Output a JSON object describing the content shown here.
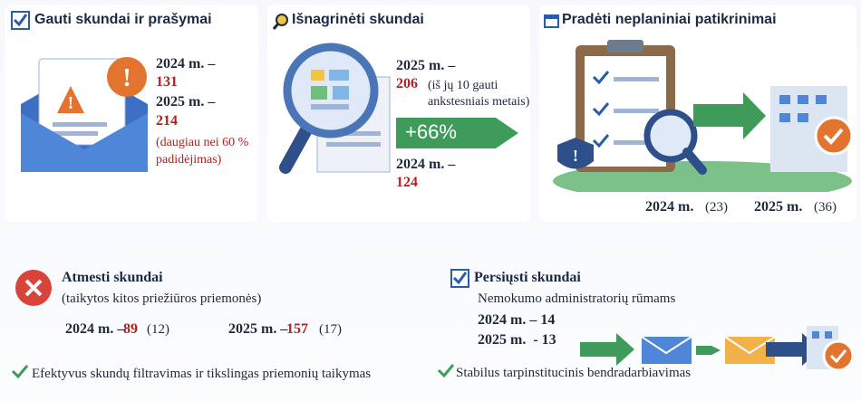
{
  "received": {
    "title": "Gauti skundai ir prašymai",
    "y2024": "2024 m. –",
    "v2024": "131",
    "y2025": "2025 m. –",
    "v2025": "214",
    "note": "(daugiau nei 60 % padidėjimas)"
  },
  "examined": {
    "title": "Išnagrinėti skundai",
    "y2025": "2025 m. –",
    "v2025": "206",
    "note": "(iš jų 10 gauti ankstesniais metais)",
    "growth": "+66%",
    "y2024": "2024 m. –",
    "v2024": "124"
  },
  "inspections": {
    "title": "Pradėti neplaniniai patikrinimai",
    "y2024": "2024 m.",
    "v2024": "(23)",
    "y2025": "2025 m.",
    "v2025": "(36)"
  },
  "rejected": {
    "title": "Atmesti skundai",
    "subtitle": "(taikytos kitos priežiūros priemonės)",
    "y2024": "2024 m. –",
    "v2024": "89",
    "s2024": "(12)",
    "y2025": "2025 m. –",
    "v2025": "157",
    "s2025": "(17)",
    "check": "Efektyvus skundų filtravimas ir tikslingas priemonių taikymas"
  },
  "forwarded": {
    "title": "Persiųsti skundai",
    "recipient": "Nemokumo administratorių rūmams",
    "line2024": "2024 m. – 14",
    "line2025": "2025 m.  - 13",
    "check": "Stabilus tarpinstitucinis bendradarbiavimas"
  }
}
